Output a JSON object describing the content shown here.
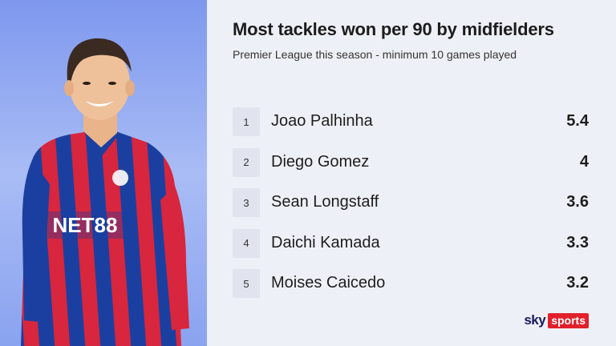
{
  "header": {
    "title": "Most tackles won per 90 by midfielders",
    "subtitle": "Premier League this season - minimum 10 games played"
  },
  "chart_data": {
    "type": "table",
    "title": "Most tackles won per 90 by midfielders",
    "subtitle": "Premier League this season - minimum 10 games played",
    "rows": [
      {
        "rank": "1",
        "name": "Joao Palhinha",
        "value": "5.4"
      },
      {
        "rank": "2",
        "name": "Diego Gomez",
        "value": "4"
      },
      {
        "rank": "3",
        "name": "Sean Longstaff",
        "value": "3.6"
      },
      {
        "rank": "4",
        "name": "Daichi Kamada",
        "value": "3.3"
      },
      {
        "rank": "5",
        "name": "Moises Caicedo",
        "value": "3.2"
      }
    ]
  },
  "photo": {
    "shirt_text": "NET88",
    "colors": {
      "panel_blue": "#8aa3f0",
      "shirt_red": "#d7263d",
      "shirt_blue": "#1b3fa0"
    }
  },
  "branding": {
    "sky": "sky",
    "sports": "sports",
    "sports_bg": "#e2202b"
  }
}
